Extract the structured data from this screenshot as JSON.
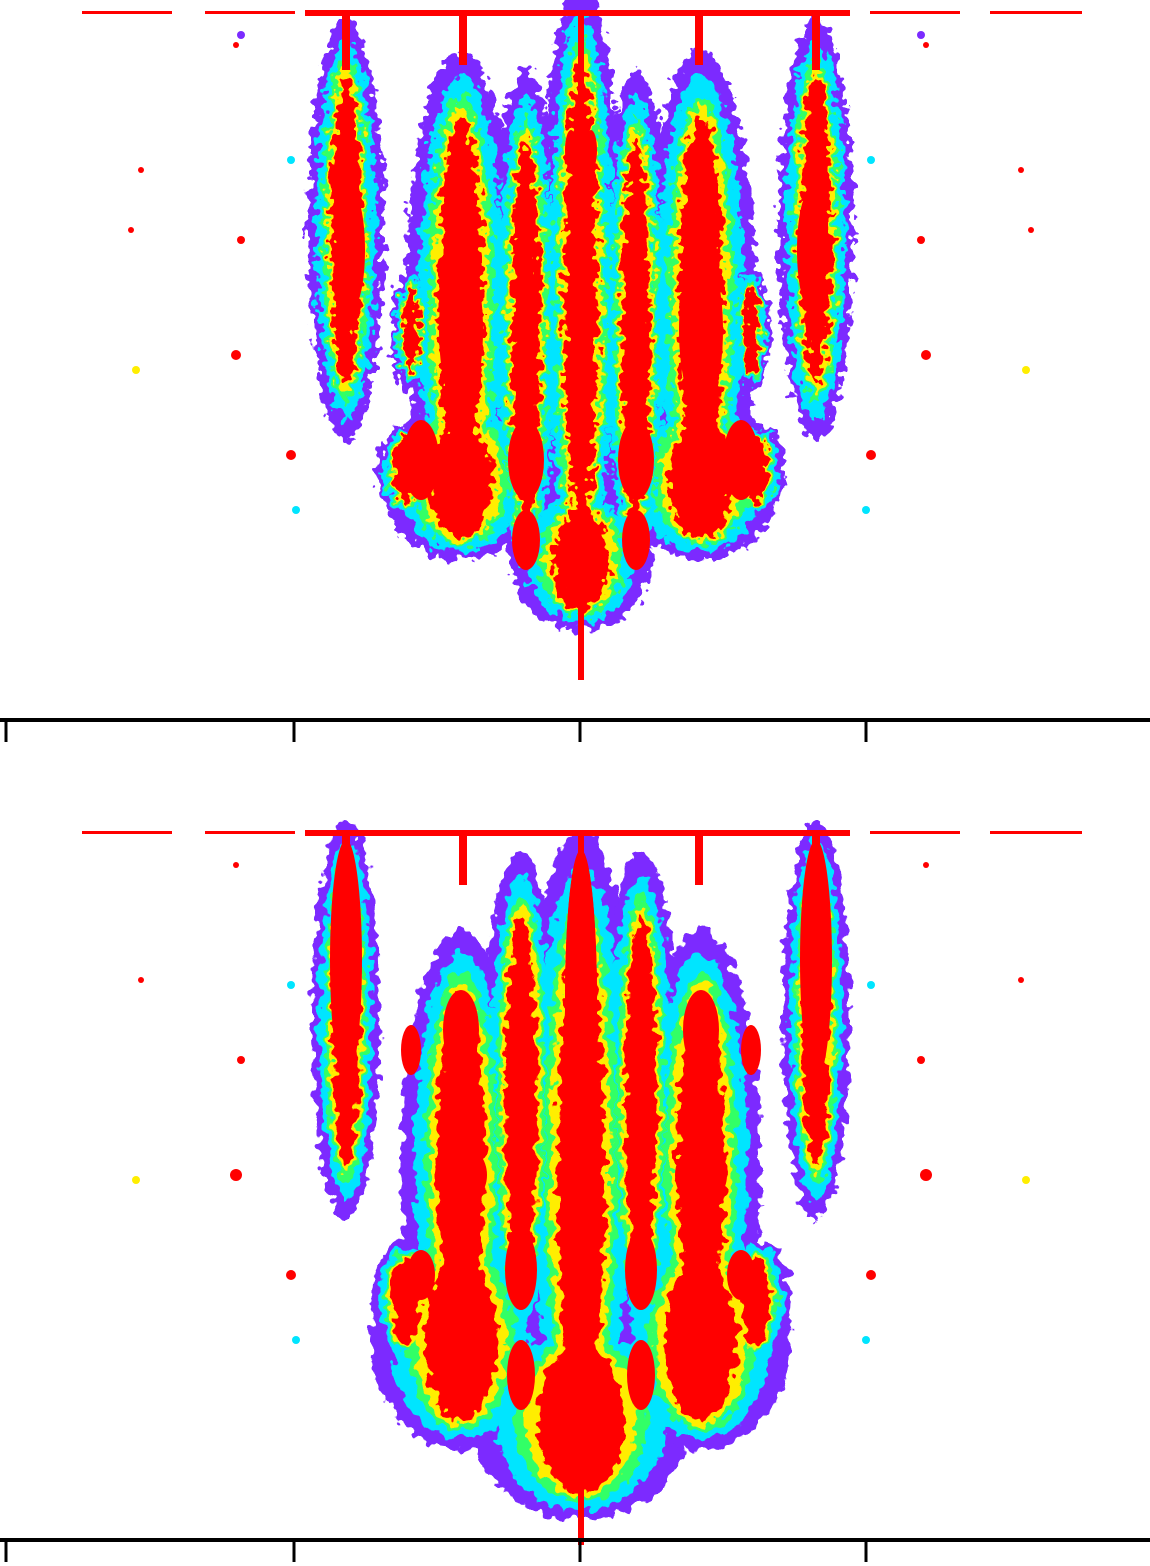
{
  "chart_data": [
    {
      "type": "heatmap",
      "panel": "top",
      "title": "",
      "xlabel": "",
      "ylabel": "",
      "grid": false,
      "legend": "none",
      "tick_labels": [],
      "colorscale": [
        "#7b2bff",
        "#00e5ff",
        "#33ff66",
        "#ffee00",
        "#ff0000"
      ]
    },
    {
      "type": "heatmap",
      "panel": "bottom",
      "title": "",
      "xlabel": "",
      "ylabel": "",
      "grid": false,
      "legend": "none",
      "tick_labels": [],
      "colorscale": [
        "#7b2bff",
        "#00e5ff",
        "#33ff66",
        "#ffee00",
        "#ff0000"
      ]
    }
  ]
}
